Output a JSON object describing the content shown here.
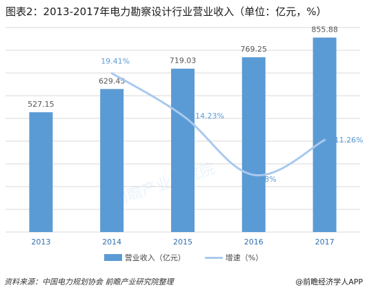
{
  "title": "图表2：2013-2017年电力勘察设计行业营业收入（单位：亿元，%）",
  "chart_data": {
    "type": "bar",
    "categories": [
      "2013",
      "2014",
      "2015",
      "2016",
      "2017"
    ],
    "series": [
      {
        "name": "营业收入（亿元）",
        "type": "bar",
        "values": [
          527.15,
          629.45,
          719.03,
          769.25,
          855.88
        ],
        "labels": [
          "527.15",
          "629.45",
          "719.03",
          "769.25",
          "855.88"
        ]
      },
      {
        "name": "增速（%）",
        "type": "line",
        "values": [
          null,
          19.41,
          14.23,
          6.98,
          11.26
        ],
        "labels": [
          "",
          "19.41%",
          "14.23%",
          "6.98%",
          "11.26%"
        ]
      }
    ],
    "ylim": [
      0,
      900
    ],
    "y2lim": [
      0,
      25
    ],
    "grid": true,
    "legend": "bottom"
  },
  "legend": {
    "bar_label": "营业收入（亿元）",
    "line_label": "增速（%）"
  },
  "footer": {
    "source": "资料来源：中国电力规划协会 前瞻产业研究院整理",
    "brand": "@前瞻经济学人APP"
  },
  "watermark": "前瞻产业研究院",
  "colors": {
    "bar": "#5b9bd5",
    "line": "#a9c9ee",
    "axis_text": "#2f6fb0"
  }
}
